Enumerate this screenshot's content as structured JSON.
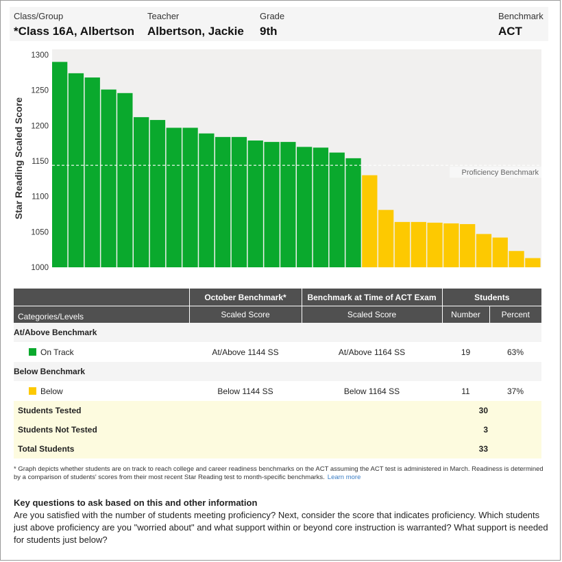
{
  "header": {
    "class_label": "Class/Group",
    "class_value": "*Class 16A, Albertson",
    "teacher_label": "Teacher",
    "teacher_value": "Albertson, Jackie",
    "grade_label": "Grade",
    "grade_value": "9th",
    "benchmark_label": "Benchmark",
    "benchmark_value": "ACT"
  },
  "chart_data": {
    "type": "bar",
    "ylabel": "Star Reading Scaled Score",
    "ylim": [
      1000,
      1300
    ],
    "yticks": [
      1000,
      1050,
      1100,
      1150,
      1200,
      1250,
      1300
    ],
    "values": [
      1290,
      1274,
      1268,
      1251,
      1246,
      1212,
      1208,
      1197,
      1197,
      1189,
      1184,
      1184,
      1179,
      1177,
      1177,
      1170,
      1169,
      1162,
      1154,
      1130,
      1081,
      1064,
      1064,
      1063,
      1062,
      1061,
      1047,
      1042,
      1023,
      1013
    ],
    "categories_per_bar": [
      "On Track",
      "On Track",
      "On Track",
      "On Track",
      "On Track",
      "On Track",
      "On Track",
      "On Track",
      "On Track",
      "On Track",
      "On Track",
      "On Track",
      "On Track",
      "On Track",
      "On Track",
      "On Track",
      "On Track",
      "On Track",
      "On Track",
      "Below",
      "Below",
      "Below",
      "Below",
      "Below",
      "Below",
      "Below",
      "Below",
      "Below",
      "Below",
      "Below"
    ],
    "benchmark_value": 1144,
    "benchmark_label": "Proficiency Benchmark",
    "grid": false
  },
  "colors": {
    "on_track": "#0aa92d",
    "below": "#fdc901",
    "panel": "#f1f0ef"
  },
  "table": {
    "headers": {
      "october": "October Benchmark*",
      "act_time": "Benchmark at Time of ACT Exam",
      "students": "Students",
      "categories": "Categories/Levels",
      "scaled_score_1": "Scaled Score",
      "scaled_score_2": "Scaled Score",
      "number": "Number",
      "percent": "Percent"
    },
    "groups": {
      "at_above": "At/Above Benchmark",
      "below": "Below Benchmark"
    },
    "rows": {
      "on_track": {
        "label": "On Track",
        "october": "At/Above 1144 SS",
        "act": "At/Above 1164 SS",
        "number": "19",
        "percent": "63%"
      },
      "below": {
        "label": "Below",
        "october": "Below 1144 SS",
        "act": "Below 1164 SS",
        "number": "11",
        "percent": "37%"
      }
    },
    "summary": {
      "tested_label": "Students Tested",
      "tested": "30",
      "not_tested_label": "Students Not Tested",
      "not_tested": "3",
      "total_label": "Total Students",
      "total": "33"
    }
  },
  "footnote": {
    "text": "* Graph depicts whether students are on track to reach college and career readiness benchmarks on the ACT assuming the ACT test is administered in March. Readiness is determined by a comparison of students' scores from their most recent Star Reading test to month-specific benchmarks.",
    "link": "Learn more"
  },
  "key_questions": {
    "title": "Key questions to ask based on this and other information",
    "body": "Are you satisfied with the number of students meeting proficiency? Next, consider the score that indicates proficiency. Which students just above proficiency are you \"worried about\" and what support within or beyond core instruction is warranted? What support is needed for students just below?"
  }
}
